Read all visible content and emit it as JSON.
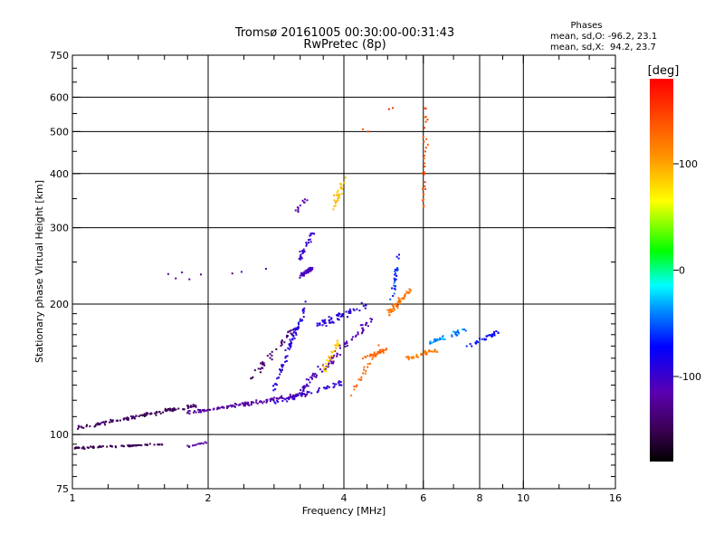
{
  "chart_data": {
    "type": "scatter",
    "title": "Tromsø 20161005 00:30:00-00:31:43",
    "subtitle": "RwPretec (8p)",
    "phases_block": {
      "heading": "Phases",
      "line_o": "mean, sd,O: -96.2, 23.1",
      "line_x": "mean, sd,X:  94.2, 23.7"
    },
    "xlabel": "Frequency [MHz]",
    "ylabel": "Stationary phase Virtual Height [km]",
    "xscale": "log",
    "yscale": "log",
    "xlim": [
      1,
      16
    ],
    "ylim": [
      75,
      750
    ],
    "x_ticks": [
      1,
      2,
      4,
      6,
      8,
      10,
      16
    ],
    "x_tick_labels": [
      "1",
      "2",
      "4",
      "6",
      "8",
      "10",
      "16"
    ],
    "x_minor_ticks": [
      1.2,
      1.4,
      1.6,
      1.8,
      2.4,
      2.8,
      3.2,
      3.6,
      4.5,
      5,
      5.5,
      7,
      9,
      12,
      14
    ],
    "y_ticks": [
      75,
      100,
      200,
      300,
      400,
      500,
      600,
      750
    ],
    "y_tick_labels": [
      "75",
      "100",
      "200",
      "300",
      "400",
      "500",
      "600",
      "750"
    ],
    "y_minor_ticks": [
      80,
      85,
      90,
      95,
      110,
      120,
      130,
      140,
      150,
      160,
      170,
      180,
      190,
      250,
      350,
      450,
      550,
      650,
      700
    ],
    "grid_x": [
      2,
      4,
      6,
      8,
      10
    ],
    "grid_y": [
      100,
      200,
      300,
      400,
      500,
      600
    ],
    "grid": true,
    "colorbar": {
      "label": "[deg]",
      "range": [
        -180,
        180
      ],
      "ticks": [
        100,
        0,
        -100
      ],
      "tick_labels": [
        "100",
        "0",
        "-100"
      ]
    },
    "point_colors_by_phase": "rainbow",
    "clusters": [
      {
        "name": "o-trace-low",
        "x0": 1.0,
        "x1": 1.9,
        "y0": 103,
        "y1": 117,
        "n": 130,
        "p": -145,
        "ps": 15,
        "j": 2.5
      },
      {
        "name": "o-trace-mid",
        "x0": 1.8,
        "x1": 3.3,
        "y0": 112,
        "y1": 124,
        "n": 140,
        "p": -120,
        "ps": 15,
        "j": 2.5
      },
      {
        "name": "o-trace-rise",
        "x0": 3.1,
        "x1": 4.6,
        "y0": 122,
        "y1": 185,
        "n": 90,
        "p": -110,
        "ps": 18,
        "j": 6
      },
      {
        "name": "sporadic-low",
        "x0": 1.0,
        "x1": 1.6,
        "y0": 93,
        "y1": 95,
        "n": 75,
        "p": -150,
        "ps": 15,
        "j": 1.2
      },
      {
        "name": "sporadic-mid",
        "x0": 1.8,
        "x1": 2.0,
        "y0": 94,
        "y1": 96,
        "n": 12,
        "p": -120,
        "ps": 15,
        "j": 1.5
      },
      {
        "name": "rise-cluster",
        "x0": 2.8,
        "x1": 3.3,
        "y0": 128,
        "y1": 200,
        "n": 70,
        "p": -90,
        "ps": 25,
        "j": 6
      },
      {
        "name": "purple-rise",
        "x0": 2.5,
        "x1": 3.1,
        "y0": 135,
        "y1": 175,
        "n": 40,
        "p": -140,
        "ps": 15,
        "j": 6
      },
      {
        "name": "f-layer-a",
        "x0": 3.2,
        "x1": 3.4,
        "y0": 232,
        "y1": 242,
        "n": 45,
        "p": -105,
        "ps": 10,
        "j": 3
      },
      {
        "name": "f-layer-b",
        "x0": 3.2,
        "x1": 3.4,
        "y0": 255,
        "y1": 290,
        "n": 30,
        "p": -100,
        "ps": 12,
        "j": 6
      },
      {
        "name": "high-branch",
        "x0": 3.1,
        "x1": 3.3,
        "y0": 320,
        "y1": 355,
        "n": 12,
        "p": -115,
        "ps": 10,
        "j": 6
      },
      {
        "name": "mid-blue",
        "x0": 3.5,
        "x1": 4.5,
        "y0": 178,
        "y1": 200,
        "n": 60,
        "p": -90,
        "ps": 15,
        "j": 5
      },
      {
        "name": "yellow-cusp",
        "x0": 3.8,
        "x1": 4.0,
        "y0": 335,
        "y1": 385,
        "n": 30,
        "p": 90,
        "ps": 15,
        "j": 8
      },
      {
        "name": "x-trace-low",
        "x0": 4.4,
        "x1": 5.0,
        "y0": 150,
        "y1": 158,
        "n": 30,
        "p": 130,
        "ps": 10,
        "j": 3
      },
      {
        "name": "x-trace-mid",
        "x0": 5.5,
        "x1": 6.5,
        "y0": 150,
        "y1": 157,
        "n": 35,
        "p": 120,
        "ps": 15,
        "j": 3
      },
      {
        "name": "orange-patch",
        "x0": 5.0,
        "x1": 5.6,
        "y0": 190,
        "y1": 215,
        "n": 50,
        "p": 125,
        "ps": 15,
        "j": 5
      },
      {
        "name": "cyan-trace",
        "x0": 6.2,
        "x1": 7.5,
        "y0": 163,
        "y1": 175,
        "n": 40,
        "p": -40,
        "ps": 20,
        "j": 4
      },
      {
        "name": "blue-end",
        "x0": 7.5,
        "x1": 8.8,
        "y0": 160,
        "y1": 172,
        "n": 30,
        "p": -70,
        "ps": 15,
        "j": 4
      },
      {
        "name": "yellow-mid",
        "x0": 3.6,
        "x1": 3.9,
        "y0": 140,
        "y1": 165,
        "n": 30,
        "p": 90,
        "ps": 20,
        "j": 5
      },
      {
        "name": "cusp-6",
        "x0": 6.0,
        "x1": 6.1,
        "y0": 330,
        "y1": 600,
        "n": 30,
        "p": 140,
        "ps": 20,
        "j": 6
      },
      {
        "name": "vertical-5",
        "x0": 5.1,
        "x1": 5.3,
        "y0": 200,
        "y1": 260,
        "n": 25,
        "p": -60,
        "ps": 40,
        "j": 6
      },
      {
        "name": "orange-low",
        "x0": 4.2,
        "x1": 4.8,
        "y0": 125,
        "y1": 160,
        "n": 25,
        "p": 130,
        "ps": 15,
        "j": 6
      },
      {
        "name": "scatter-low",
        "x0": 2.8,
        "x1": 4.0,
        "y0": 118,
        "y1": 132,
        "n": 45,
        "p": -95,
        "ps": 20,
        "j": 4
      },
      {
        "name": "scatter-top",
        "x0": 1.4,
        "x1": 2.7,
        "y0": 230,
        "y1": 240,
        "n": 8,
        "p": -120,
        "ps": 20,
        "j": 5
      },
      {
        "name": "scatter-red",
        "x0": 4.3,
        "x1": 5.2,
        "y0": 495,
        "y1": 580,
        "n": 4,
        "p": 150,
        "ps": 20,
        "j": 8
      }
    ]
  }
}
